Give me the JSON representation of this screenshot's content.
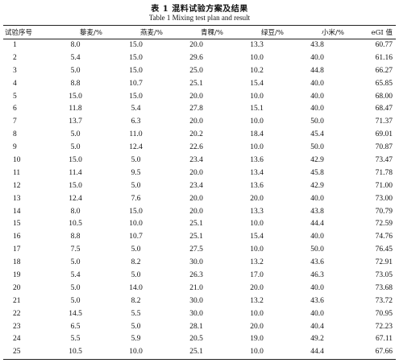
{
  "caption": {
    "cn": "表 1   混料试验方案及结果",
    "en": "Table 1   Mixing test plan and result"
  },
  "table": {
    "headers": [
      "试验序号",
      "藜麦/%",
      "燕麦/%",
      "青稞/%",
      "绿豆/%",
      "小米/%",
      "eGI 值"
    ],
    "rows": [
      [
        "1",
        "8.0",
        "15.0",
        "20.0",
        "13.3",
        "43.8",
        "60.77"
      ],
      [
        "2",
        "5.4",
        "15.0",
        "29.6",
        "10.0",
        "40.0",
        "61.16"
      ],
      [
        "3",
        "5.0",
        "15.0",
        "25.0",
        "10.2",
        "44.8",
        "66.27"
      ],
      [
        "4",
        "8.8",
        "10.7",
        "25.1",
        "15.4",
        "40.0",
        "65.85"
      ],
      [
        "5",
        "15.0",
        "15.0",
        "20.0",
        "10.0",
        "40.0",
        "68.00"
      ],
      [
        "6",
        "11.8",
        "5.4",
        "27.8",
        "15.1",
        "40.0",
        "68.47"
      ],
      [
        "7",
        "13.7",
        "6.3",
        "20.0",
        "10.0",
        "50.0",
        "71.37"
      ],
      [
        "8",
        "5.0",
        "11.0",
        "20.2",
        "18.4",
        "45.4",
        "69.01"
      ],
      [
        "9",
        "5.0",
        "12.4",
        "22.6",
        "10.0",
        "50.0",
        "70.87"
      ],
      [
        "10",
        "15.0",
        "5.0",
        "23.4",
        "13.6",
        "42.9",
        "73.47"
      ],
      [
        "11",
        "11.4",
        "9.5",
        "20.0",
        "13.4",
        "45.8",
        "71.78"
      ],
      [
        "12",
        "15.0",
        "5.0",
        "23.4",
        "13.6",
        "42.9",
        "71.00"
      ],
      [
        "13",
        "12.4",
        "7.6",
        "20.0",
        "20.0",
        "40.0",
        "73.00"
      ],
      [
        "14",
        "8.0",
        "15.0",
        "20.0",
        "13.3",
        "43.8",
        "70.79"
      ],
      [
        "15",
        "10.5",
        "10.0",
        "25.1",
        "10.0",
        "44.4",
        "72.59"
      ],
      [
        "16",
        "8.8",
        "10.7",
        "25.1",
        "15.4",
        "40.0",
        "74.76"
      ],
      [
        "17",
        "7.5",
        "5.0",
        "27.5",
        "10.0",
        "50.0",
        "76.45"
      ],
      [
        "18",
        "5.0",
        "8.2",
        "30.0",
        "13.2",
        "43.6",
        "72.91"
      ],
      [
        "19",
        "5.4",
        "5.0",
        "26.3",
        "17.0",
        "46.3",
        "73.05"
      ],
      [
        "20",
        "5.0",
        "14.0",
        "21.0",
        "20.0",
        "40.0",
        "73.68"
      ],
      [
        "21",
        "5.0",
        "8.2",
        "30.0",
        "13.2",
        "43.6",
        "73.72"
      ],
      [
        "22",
        "14.5",
        "5.5",
        "30.0",
        "10.0",
        "40.0",
        "70.95"
      ],
      [
        "23",
        "6.5",
        "5.0",
        "28.1",
        "20.0",
        "40.4",
        "72.23"
      ],
      [
        "24",
        "5.5",
        "5.9",
        "20.5",
        "19.0",
        "49.2",
        "67.11"
      ],
      [
        "25",
        "10.5",
        "10.0",
        "25.1",
        "10.0",
        "44.4",
        "67.66"
      ]
    ]
  }
}
